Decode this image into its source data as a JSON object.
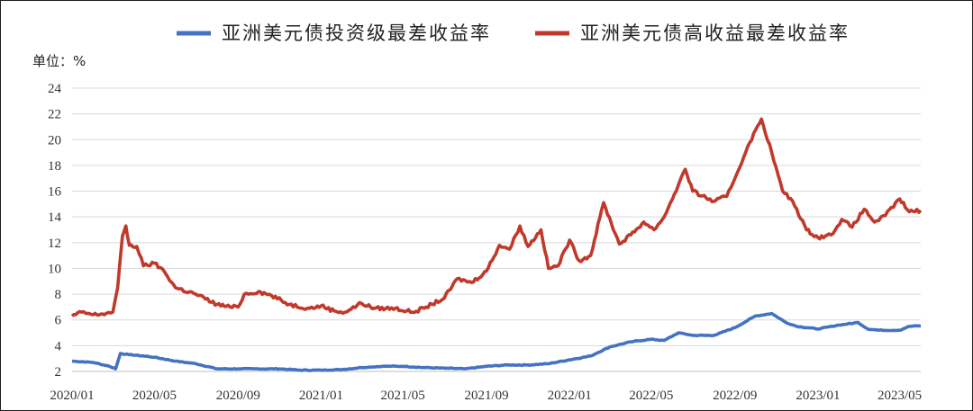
{
  "chart_data": {
    "type": "line",
    "unit_label": "单位：%",
    "ylim": [
      2,
      24
    ],
    "y_ticks": [
      2,
      4,
      6,
      8,
      10,
      12,
      14,
      16,
      18,
      20,
      22,
      24
    ],
    "x_ticks": [
      "2020/01",
      "2020/05",
      "2020/09",
      "2021/01",
      "2021/05",
      "2021/09",
      "2022/01",
      "2022/05",
      "2022/09",
      "2023/01",
      "2023/05"
    ],
    "x_range": [
      "2020-01-01",
      "2023-06-01"
    ],
    "grid": true,
    "legend_position": "top",
    "colors": {
      "ig": "#4472C4",
      "hy": "#C0392B"
    },
    "series": [
      {
        "name": "亚洲美元债投资级最差收益率",
        "color_key": "ig",
        "points": [
          [
            "2020-01-01",
            2.8
          ],
          [
            "2020-02-01",
            2.7
          ],
          [
            "2020-02-25",
            2.4
          ],
          [
            "2020-03-05",
            2.2
          ],
          [
            "2020-03-12",
            3.4
          ],
          [
            "2020-03-25",
            3.3
          ],
          [
            "2020-04-15",
            3.2
          ],
          [
            "2020-05-01",
            3.1
          ],
          [
            "2020-06-01",
            2.8
          ],
          [
            "2020-07-01",
            2.6
          ],
          [
            "2020-08-01",
            2.2
          ],
          [
            "2020-09-01",
            2.2
          ],
          [
            "2020-10-01",
            2.2
          ],
          [
            "2020-11-01",
            2.2
          ],
          [
            "2020-12-01",
            2.1
          ],
          [
            "2021-01-01",
            2.1
          ],
          [
            "2021-02-01",
            2.15
          ],
          [
            "2021-03-01",
            2.3
          ],
          [
            "2021-04-01",
            2.4
          ],
          [
            "2021-05-01",
            2.4
          ],
          [
            "2021-06-01",
            2.3
          ],
          [
            "2021-07-01",
            2.25
          ],
          [
            "2021-08-01",
            2.2
          ],
          [
            "2021-09-01",
            2.4
          ],
          [
            "2021-10-01",
            2.5
          ],
          [
            "2021-11-01",
            2.5
          ],
          [
            "2021-12-01",
            2.6
          ],
          [
            "2022-01-01",
            2.9
          ],
          [
            "2022-02-01",
            3.2
          ],
          [
            "2022-03-01",
            3.9
          ],
          [
            "2022-04-01",
            4.3
          ],
          [
            "2022-05-01",
            4.5
          ],
          [
            "2022-05-20",
            4.4
          ],
          [
            "2022-06-10",
            5.0
          ],
          [
            "2022-07-01",
            4.8
          ],
          [
            "2022-08-01",
            4.8
          ],
          [
            "2022-09-01",
            5.4
          ],
          [
            "2022-10-01",
            6.3
          ],
          [
            "2022-10-25",
            6.5
          ],
          [
            "2022-11-15",
            5.8
          ],
          [
            "2022-12-01",
            5.5
          ],
          [
            "2023-01-01",
            5.3
          ],
          [
            "2023-02-01",
            5.6
          ],
          [
            "2023-03-01",
            5.8
          ],
          [
            "2023-03-15",
            5.3
          ],
          [
            "2023-04-01",
            5.2
          ],
          [
            "2023-05-01",
            5.2
          ],
          [
            "2023-05-15",
            5.5
          ],
          [
            "2023-06-01",
            5.55
          ]
        ]
      },
      {
        "name": "亚洲美元债高收益最差收益率",
        "color_key": "hy",
        "points": [
          [
            "2020-01-01",
            6.3
          ],
          [
            "2020-01-15",
            6.6
          ],
          [
            "2020-02-01",
            6.4
          ],
          [
            "2020-02-20",
            6.5
          ],
          [
            "2020-03-01",
            6.6
          ],
          [
            "2020-03-08",
            8.5
          ],
          [
            "2020-03-15",
            12.5
          ],
          [
            "2020-03-20",
            13.3
          ],
          [
            "2020-03-25",
            11.8
          ],
          [
            "2020-04-05",
            11.7
          ],
          [
            "2020-04-15",
            10.2
          ],
          [
            "2020-05-01",
            10.4
          ],
          [
            "2020-05-15",
            9.8
          ],
          [
            "2020-06-01",
            8.5
          ],
          [
            "2020-07-01",
            8.0
          ],
          [
            "2020-08-01",
            7.2
          ],
          [
            "2020-08-20",
            7.0
          ],
          [
            "2020-09-01",
            7.0
          ],
          [
            "2020-09-10",
            8.0
          ],
          [
            "2020-10-01",
            8.2
          ],
          [
            "2020-10-20",
            7.9
          ],
          [
            "2020-11-15",
            7.2
          ],
          [
            "2020-12-15",
            6.9
          ],
          [
            "2021-01-01",
            7.1
          ],
          [
            "2021-01-20",
            6.7
          ],
          [
            "2021-02-05",
            6.6
          ],
          [
            "2021-03-01",
            7.3
          ],
          [
            "2021-03-20",
            6.9
          ],
          [
            "2021-04-20",
            6.9
          ],
          [
            "2021-05-15",
            6.6
          ],
          [
            "2021-06-01",
            6.9
          ],
          [
            "2021-07-01",
            7.7
          ],
          [
            "2021-07-20",
            9.2
          ],
          [
            "2021-08-10",
            8.9
          ],
          [
            "2021-09-01",
            9.8
          ],
          [
            "2021-09-20",
            11.8
          ],
          [
            "2021-10-05",
            11.5
          ],
          [
            "2021-10-20",
            13.3
          ],
          [
            "2021-11-01",
            11.7
          ],
          [
            "2021-11-20",
            13.0
          ],
          [
            "2021-12-01",
            10.0
          ],
          [
            "2021-12-15",
            10.2
          ],
          [
            "2022-01-01",
            12.2
          ],
          [
            "2022-01-15",
            10.6
          ],
          [
            "2022-02-01",
            11.0
          ],
          [
            "2022-02-20",
            15.1
          ],
          [
            "2022-03-15",
            11.9
          ],
          [
            "2022-04-01",
            12.6
          ],
          [
            "2022-04-20",
            13.6
          ],
          [
            "2022-05-05",
            13.0
          ],
          [
            "2022-05-20",
            14.0
          ],
          [
            "2022-06-10",
            16.5
          ],
          [
            "2022-06-20",
            17.7
          ],
          [
            "2022-07-01",
            16.0
          ],
          [
            "2022-08-01",
            15.2
          ],
          [
            "2022-08-20",
            15.6
          ],
          [
            "2022-09-05",
            17.5
          ],
          [
            "2022-09-20",
            19.5
          ],
          [
            "2022-10-10",
            21.6
          ],
          [
            "2022-10-25",
            19.0
          ],
          [
            "2022-11-10",
            16.0
          ],
          [
            "2022-11-25",
            15.2
          ],
          [
            "2022-12-15",
            13.0
          ],
          [
            "2023-01-01",
            12.4
          ],
          [
            "2023-01-20",
            12.6
          ],
          [
            "2023-02-05",
            13.8
          ],
          [
            "2023-02-20",
            13.2
          ],
          [
            "2023-03-10",
            14.6
          ],
          [
            "2023-03-25",
            13.6
          ],
          [
            "2023-04-10",
            14.1
          ],
          [
            "2023-05-01",
            15.4
          ],
          [
            "2023-05-15",
            14.4
          ],
          [
            "2023-06-01",
            14.5
          ]
        ]
      }
    ]
  }
}
